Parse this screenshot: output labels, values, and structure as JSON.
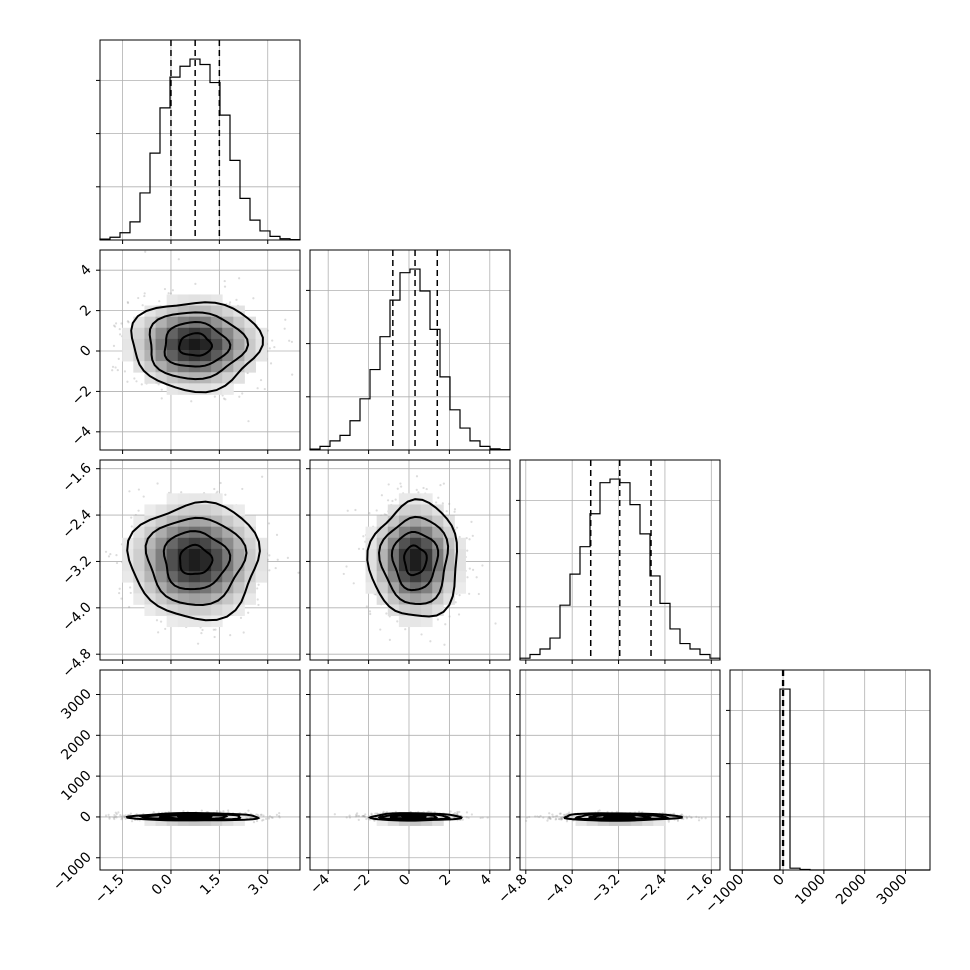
{
  "chart_data": {
    "type": "corner",
    "title": "",
    "grid": true,
    "parameters": [
      {
        "index": 0,
        "range": [
          -2.2,
          4.0
        ],
        "ticks": [
          -1.5,
          0.0,
          1.5,
          3.0
        ],
        "tick_labels": [
          "−1.5",
          "0.0",
          "1.5",
          "3.0"
        ],
        "quantiles": [
          0.0,
          0.75,
          1.5
        ],
        "hist_edges": [
          -2.2,
          -1.89,
          -1.58,
          -1.27,
          -0.96,
          -0.65,
          -0.34,
          -0.03,
          0.28,
          0.59,
          0.9,
          1.21,
          1.52,
          1.83,
          2.14,
          2.45,
          2.76,
          3.07,
          3.38,
          3.69,
          4.0
        ],
        "hist_counts": [
          0.5,
          1.5,
          4,
          10,
          26,
          48,
          73,
          90,
          96,
          100,
          97,
          87,
          69,
          44,
          23,
          11,
          5,
          2,
          0.7,
          0.2
        ]
      },
      {
        "index": 1,
        "range": [
          -4.9,
          5.0
        ],
        "ticks": [
          -4,
          -2,
          0,
          2,
          4
        ],
        "tick_labels": [
          "−4",
          "−2",
          "0",
          "2",
          "4"
        ],
        "quantiles": [
          -0.8,
          0.3,
          1.4
        ],
        "hist_edges": [
          -4.9,
          -4.405,
          -3.91,
          -3.415,
          -2.92,
          -2.425,
          -1.93,
          -1.435,
          -0.94,
          -0.445,
          0.05,
          0.545,
          1.04,
          1.535,
          2.03,
          2.525,
          3.02,
          3.515,
          4.01,
          4.505,
          5.0
        ],
        "hist_counts": [
          0.5,
          2,
          5,
          8,
          16,
          28,
          44,
          62,
          82,
          97,
          99,
          87,
          66,
          40,
          22,
          12,
          5,
          2,
          0.6,
          0.2
        ]
      },
      {
        "index": 2,
        "range": [
          -4.9,
          -1.45
        ],
        "ticks": [
          -4.8,
          -4.0,
          -3.2,
          -2.4,
          -1.6
        ],
        "tick_labels": [
          "−4.8",
          "−4.0",
          "−3.2",
          "−2.4",
          "−1.6"
        ],
        "quantiles": [
          -3.68,
          -3.18,
          -2.64
        ],
        "hist_edges": [
          -4.9,
          -4.7275,
          -4.555,
          -4.3825,
          -4.21,
          -4.0375,
          -3.865,
          -3.6925,
          -3.52,
          -3.3475,
          -3.175,
          -3.0025,
          -2.83,
          -2.6575,
          -2.485,
          -2.3125,
          -2.14,
          -1.9675,
          -1.795,
          -1.6225,
          -1.45
        ],
        "hist_counts": [
          1,
          3,
          6,
          12,
          30,
          47,
          62,
          80,
          97,
          99,
          97,
          85,
          69,
          46,
          31,
          17,
          9,
          6,
          3,
          1
        ]
      },
      {
        "index": 3,
        "range": [
          -1300,
          3600
        ],
        "ticks": [
          -1000,
          0,
          1000,
          2000,
          3000
        ],
        "tick_labels": [
          "−1000",
          "0",
          "1000",
          "2000",
          "3000"
        ],
        "quantiles": [
          -10,
          0,
          10
        ],
        "hist_edges": [
          -1300,
          -1055,
          -810,
          -565,
          -320,
          -75,
          170,
          415,
          660,
          905,
          1150,
          1395,
          1640,
          1885,
          2130,
          2375,
          2620,
          2865,
          3110,
          3355,
          3600
        ],
        "hist_counts": [
          0,
          0,
          0,
          0,
          0,
          100,
          1,
          0.3,
          0,
          0,
          0,
          0,
          0,
          0,
          0,
          0,
          0,
          0,
          0,
          0
        ]
      }
    ],
    "pairs": [
      {
        "x": 0,
        "y": 1,
        "center": [
          0.75,
          0.3
        ],
        "sigma": [
          1.0,
          1.1
        ]
      },
      {
        "x": 0,
        "y": 2,
        "center": [
          0.75,
          -3.18
        ],
        "sigma": [
          1.0,
          0.5
        ]
      },
      {
        "x": 1,
        "y": 2,
        "center": [
          0.3,
          -3.18
        ],
        "sigma": [
          1.1,
          0.5
        ]
      },
      {
        "x": 0,
        "y": 3,
        "center": [
          0.75,
          0
        ],
        "sigma": [
          1.0,
          45
        ]
      },
      {
        "x": 1,
        "y": 3,
        "center": [
          0.3,
          0
        ],
        "sigma": [
          1.1,
          45
        ]
      },
      {
        "x": 2,
        "y": 3,
        "center": [
          -3.18,
          0
        ],
        "sigma": [
          0.5,
          45
        ]
      }
    ],
    "contour_levels_sigma": [
      0.5,
      1.0,
      1.5,
      2.0
    ],
    "colors": {
      "line": "#000000",
      "grid": "#b0b0b0",
      "point": "#9a9a9a",
      "fill_dark": "#000000"
    }
  }
}
